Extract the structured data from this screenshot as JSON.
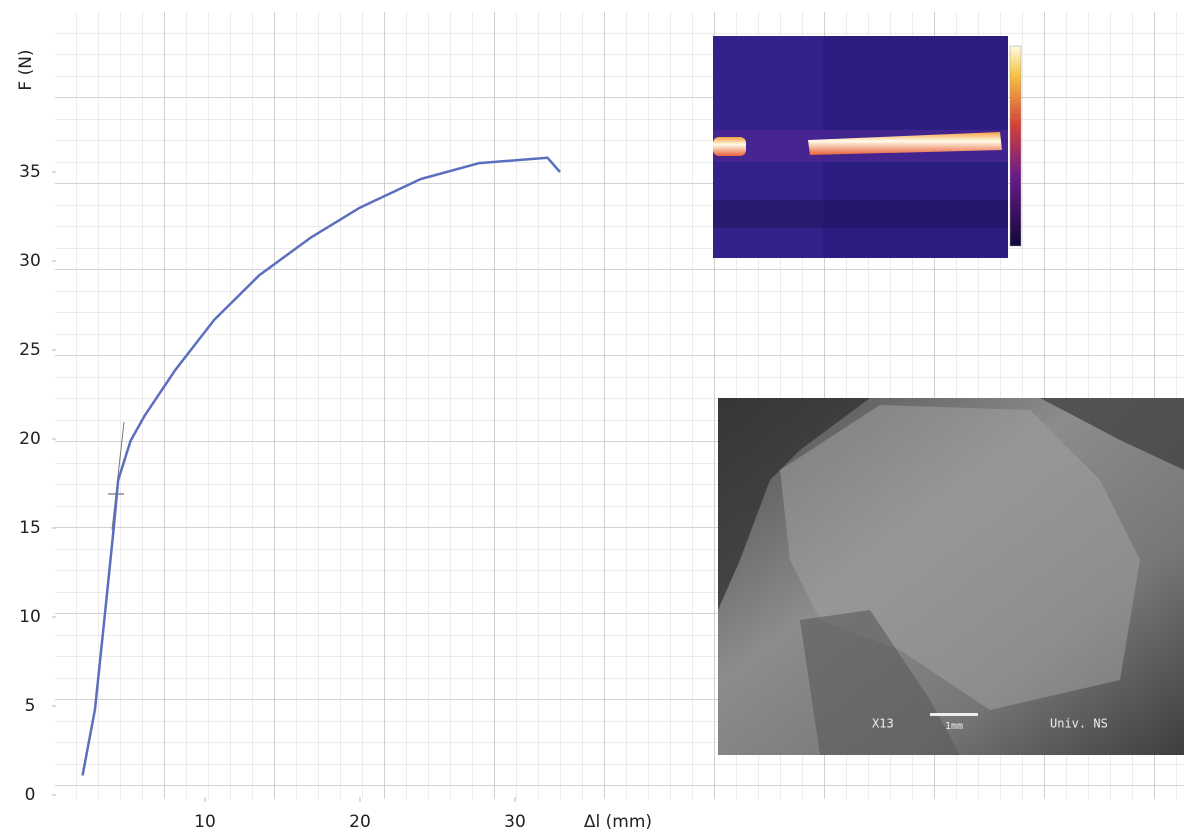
{
  "chart_data": {
    "type": "line",
    "y_label": "F (N)",
    "x_label": "Δl  (mm)",
    "x": [
      2.1,
      2.9,
      3.5,
      4.1,
      4.4,
      5.2,
      6.1,
      8.1,
      10.6,
      13.5,
      16.8,
      20,
      23.9,
      27.7,
      32.1,
      32.9
    ],
    "series": [
      {
        "name": "F",
        "color": "#5b6fbf",
        "values": [
          1.1,
          4.8,
          9.8,
          14.9,
          17.7,
          19.9,
          21.3,
          23.9,
          26.7,
          29.2,
          31.3,
          33,
          34.6,
          35.5,
          35.8,
          35
        ]
      }
    ],
    "xlim": [
      0,
      73
    ],
    "ylim": [
      0,
      44
    ],
    "xticks": [
      10,
      20,
      30
    ],
    "yticks": [
      0,
      5,
      10,
      15,
      20,
      25,
      30,
      35
    ],
    "annotations": [
      "X13",
      "1mm",
      "Univ. NS"
    ]
  }
}
